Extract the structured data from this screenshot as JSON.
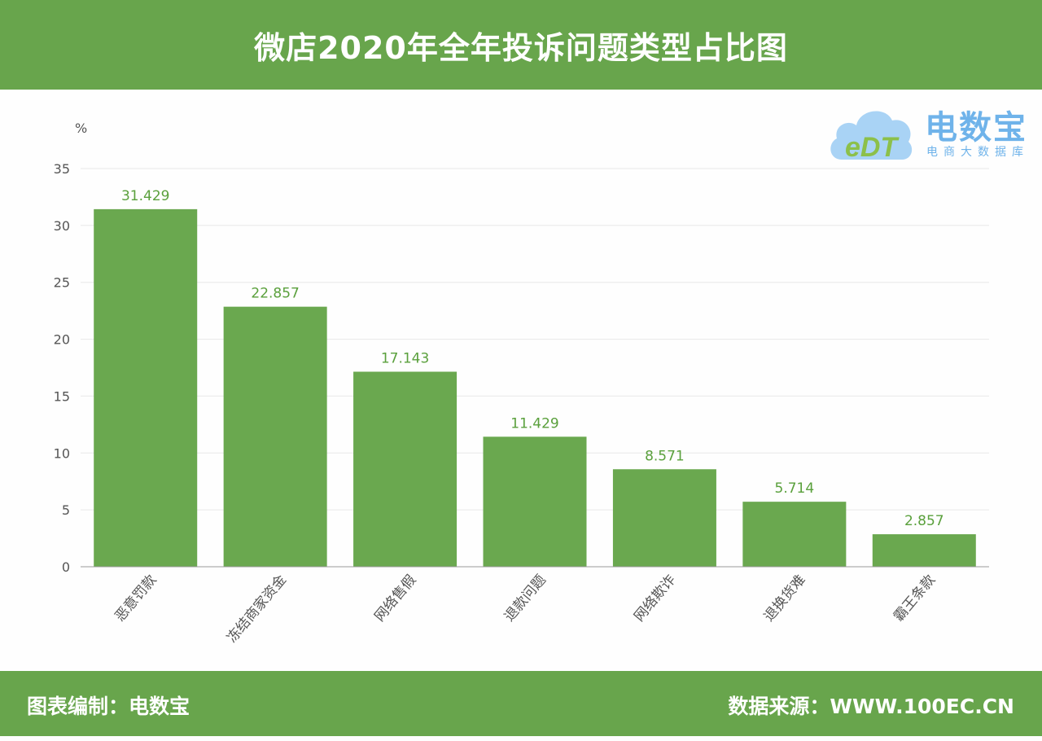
{
  "header": {
    "title": "微店2020年全年投诉问题类型占比图"
  },
  "logo": {
    "brand": "电数宝",
    "subtitle": "电商大数据库",
    "mark": "eDT"
  },
  "footer": {
    "left": "图表编制：电数宝",
    "right": "数据来源：WWW.100EC.CN"
  },
  "colors": {
    "bar": "#6aa84f",
    "label": "#5aa03c",
    "header": "#68a54c",
    "logo": "#6fb3ea"
  },
  "chart_data": {
    "type": "bar",
    "title": "微店2020年全年投诉问题类型占比图",
    "ylabel": "%",
    "xlabel": "",
    "ylim": [
      0,
      35
    ],
    "yticks": [
      0,
      5,
      10,
      15,
      20,
      25,
      30,
      35
    ],
    "grid": true,
    "categories": [
      "恶意罚款",
      "冻结商家资金",
      "网络售假",
      "退款问题",
      "网络欺诈",
      "退换货难",
      "霸王条款"
    ],
    "values": [
      31.429,
      22.857,
      17.143,
      11.429,
      8.571,
      5.714,
      2.857
    ],
    "data_labels": [
      "31.429",
      "22.857",
      "17.143",
      "11.429",
      "8.571",
      "5.714",
      "2.857"
    ]
  }
}
